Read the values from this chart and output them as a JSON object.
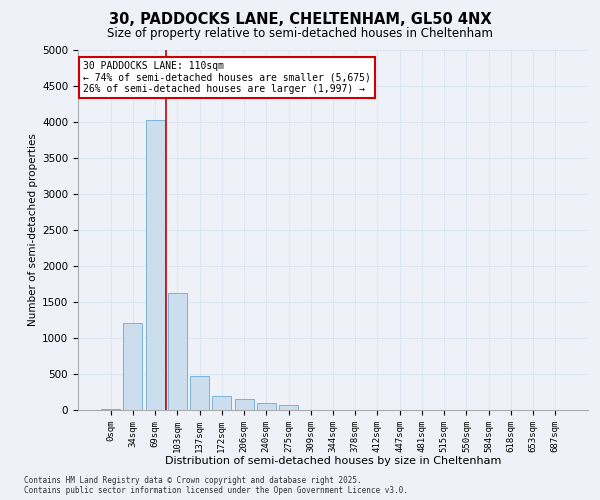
{
  "title_line1": "30, PADDOCKS LANE, CHELTENHAM, GL50 4NX",
  "title_line2": "Size of property relative to semi-detached houses in Cheltenham",
  "xlabel": "Distribution of semi-detached houses by size in Cheltenham",
  "ylabel": "Number of semi-detached properties",
  "categories": [
    "0sqm",
    "34sqm",
    "69sqm",
    "103sqm",
    "137sqm",
    "172sqm",
    "206sqm",
    "240sqm",
    "275sqm",
    "309sqm",
    "344sqm",
    "378sqm",
    "412sqm",
    "447sqm",
    "481sqm",
    "515sqm",
    "550sqm",
    "584sqm",
    "618sqm",
    "653sqm",
    "687sqm"
  ],
  "values": [
    10,
    1210,
    4030,
    1620,
    470,
    200,
    150,
    95,
    70,
    0,
    0,
    0,
    0,
    0,
    0,
    0,
    0,
    0,
    0,
    0,
    0
  ],
  "bar_color": "#ccdded",
  "bar_edge_color": "#6aaad4",
  "grid_color": "#d8e4f0",
  "vline_x": 2.5,
  "vline_color": "#cc0000",
  "annotation_text": "30 PADDOCKS LANE: 110sqm\n← 74% of semi-detached houses are smaller (5,675)\n26% of semi-detached houses are larger (1,997) →",
  "annotation_box_color": "#ffffff",
  "annotation_box_edge": "#cc0000",
  "ylim": [
    0,
    5000
  ],
  "yticks": [
    0,
    500,
    1000,
    1500,
    2000,
    2500,
    3000,
    3500,
    4000,
    4500,
    5000
  ],
  "footnote": "Contains HM Land Registry data © Crown copyright and database right 2025.\nContains public sector information licensed under the Open Government Licence v3.0.",
  "bg_color": "#eef2f8"
}
